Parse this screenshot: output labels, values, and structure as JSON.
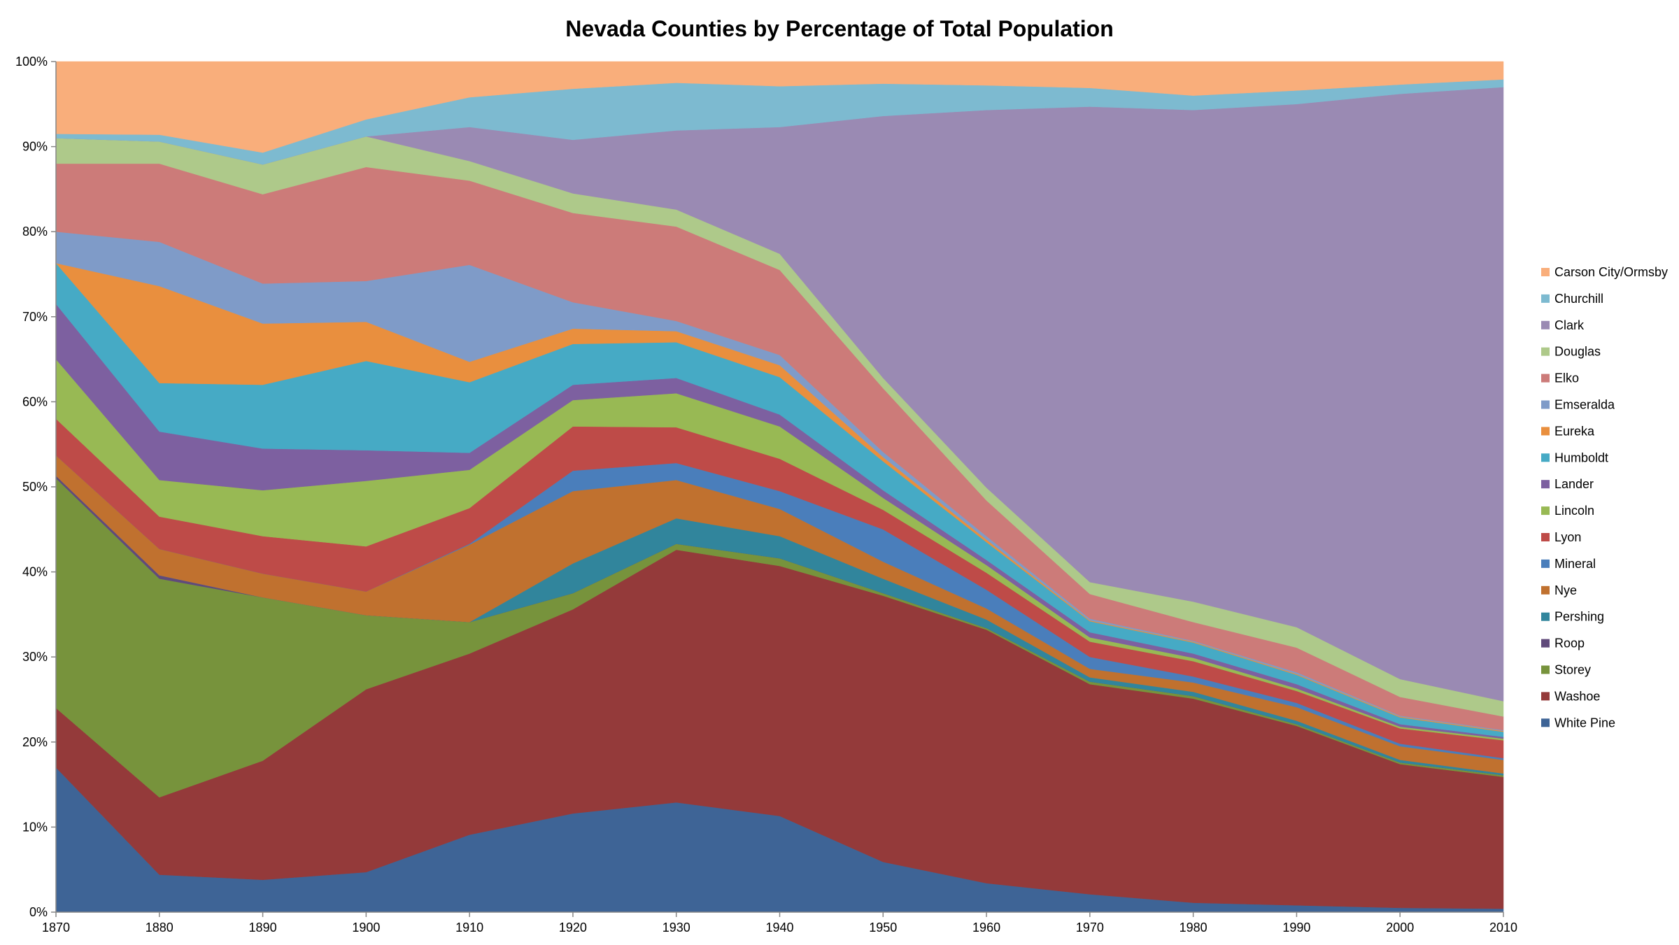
{
  "chart_data": {
    "type": "area",
    "stacking": "percent",
    "title": "Nevada Counties by Percentage of Total Population",
    "xlabel": "",
    "ylabel": "",
    "x": [
      1870,
      1880,
      1890,
      1900,
      1910,
      1920,
      1930,
      1940,
      1950,
      1960,
      1970,
      1980,
      1990,
      2000,
      2010
    ],
    "ylim": [
      0,
      100
    ],
    "y_ticks": [
      "0%",
      "10%",
      "20%",
      "30%",
      "40%",
      "50%",
      "60%",
      "70%",
      "80%",
      "90%",
      "100%"
    ],
    "grid": false,
    "legend_position": "right",
    "series": [
      {
        "name": "White Pine",
        "color": "#3E6496",
        "values": [
          17,
          4.4,
          3.8,
          4.7,
          9.1,
          11.6,
          12.9,
          11.3,
          5.9,
          3.4,
          2.1,
          1.1,
          0.8,
          0.5,
          0.4
        ]
      },
      {
        "name": "Washoe",
        "color": "#943A3A",
        "values": [
          7,
          9.1,
          14,
          21.5,
          21.3,
          24,
          29.7,
          29.4,
          31.3,
          29.8,
          24.7,
          24,
          21.1,
          16.9,
          15.5
        ]
      },
      {
        "name": "Storey",
        "color": "#77933C",
        "values": [
          27,
          25.7,
          19.2,
          8.7,
          3.7,
          1.9,
          0.7,
          0.9,
          0.3,
          0.2,
          0.3,
          0.3,
          0.2,
          0.2,
          0.2
        ]
      },
      {
        "name": "Roop",
        "color": "#604A7B",
        "values": [
          0.3,
          0.4,
          0,
          0,
          0,
          0,
          0,
          0,
          0,
          0,
          0,
          0,
          0,
          0,
          0
        ]
      },
      {
        "name": "Pershing",
        "color": "#31859C",
        "values": [
          0,
          0,
          0,
          0,
          0,
          3.5,
          3,
          2.6,
          1.7,
          1,
          0.5,
          0.5,
          0.4,
          0.3,
          0.2
        ]
      },
      {
        "name": "Nye",
        "color": "#C0712F",
        "values": [
          2.4,
          3.1,
          2.8,
          2.8,
          9.1,
          8.5,
          4.5,
          3.2,
          2,
          1.3,
          1,
          1.1,
          1.6,
          1.6,
          1.6
        ]
      },
      {
        "name": "Mineral",
        "color": "#4A7EBB",
        "values": [
          0,
          0,
          0,
          0,
          0.1,
          2.4,
          2,
          2.1,
          3.8,
          2.2,
          1.4,
          0.7,
          0.5,
          0.3,
          0.2
        ]
      },
      {
        "name": "Lyon",
        "color": "#BE4B48",
        "values": [
          4.3,
          3.8,
          4.4,
          5.3,
          4.2,
          5.2,
          4.2,
          3.8,
          2.3,
          2,
          1.8,
          1.8,
          1.4,
          1.8,
          2.1
        ]
      },
      {
        "name": "Lincoln",
        "color": "#98B954",
        "values": [
          7,
          4.3,
          5.4,
          7.7,
          4.5,
          3.1,
          4,
          3.8,
          1.4,
          0.9,
          0.5,
          0.4,
          0.3,
          0.2,
          0.2
        ]
      },
      {
        "name": "Lander",
        "color": "#7D60A0",
        "values": [
          6.5,
          5.7,
          4.9,
          3.6,
          2,
          1.8,
          1.8,
          1.4,
          0.9,
          0.6,
          0.6,
          0.5,
          0.5,
          0.3,
          0.2
        ]
      },
      {
        "name": "Humboldt",
        "color": "#46AAC5",
        "values": [
          4.8,
          5.7,
          7.5,
          10.5,
          8.3,
          4.8,
          4.2,
          4.4,
          3.4,
          2.1,
          1.3,
          1.3,
          1.1,
          0.8,
          0.6
        ]
      },
      {
        "name": "Eureka",
        "color": "#E98F3E",
        "values": [
          0,
          11.4,
          7.2,
          4.6,
          2.4,
          1.8,
          1.3,
          1.4,
          0.5,
          0.3,
          0.1,
          0.1,
          0.1,
          0.1,
          0.1
        ]
      },
      {
        "name": "Emseralda",
        "color": "#7F9BC8",
        "values": [
          3.7,
          5.2,
          4.7,
          4.8,
          11.4,
          3.1,
          1.2,
          1.2,
          0.6,
          0.4,
          0.2,
          0.1,
          0.2,
          0.1,
          0.1
        ]
      },
      {
        "name": "Elko",
        "color": "#CC7B79",
        "values": [
          8,
          9.2,
          10.5,
          13.4,
          9.9,
          10.5,
          11.1,
          10,
          7.5,
          4.2,
          2.9,
          2.2,
          2.9,
          2.2,
          1.6
        ]
      },
      {
        "name": "Douglas",
        "color": "#AEC98A",
        "values": [
          3,
          2.6,
          3.5,
          3.6,
          2.3,
          2.3,
          2,
          1.9,
          1.2,
          1.5,
          1.4,
          2.4,
          2.4,
          2.1,
          1.8
        ]
      },
      {
        "name": "Clark",
        "color": "#9A8AB3",
        "values": [
          0,
          0,
          0,
          0,
          4,
          6.3,
          9.3,
          14.9,
          30.8,
          44.4,
          55.9,
          57.8,
          61.5,
          68.8,
          72.2
        ]
      },
      {
        "name": "Churchill",
        "color": "#7DBAD0",
        "values": [
          0.5,
          0.8,
          1.4,
          2,
          3.5,
          6,
          5.6,
          4.8,
          3.8,
          2.9,
          2.2,
          1.7,
          1.6,
          1.1,
          0.9
        ]
      },
      {
        "name": "Carson City/Ormsby",
        "color": "#F9AE7B",
        "values": [
          8.5,
          8.6,
          10.7,
          6.8,
          4.2,
          3.2,
          2.5,
          2.9,
          2.6,
          2.8,
          3.1,
          4,
          3.4,
          2.7,
          2.1
        ]
      }
    ]
  }
}
